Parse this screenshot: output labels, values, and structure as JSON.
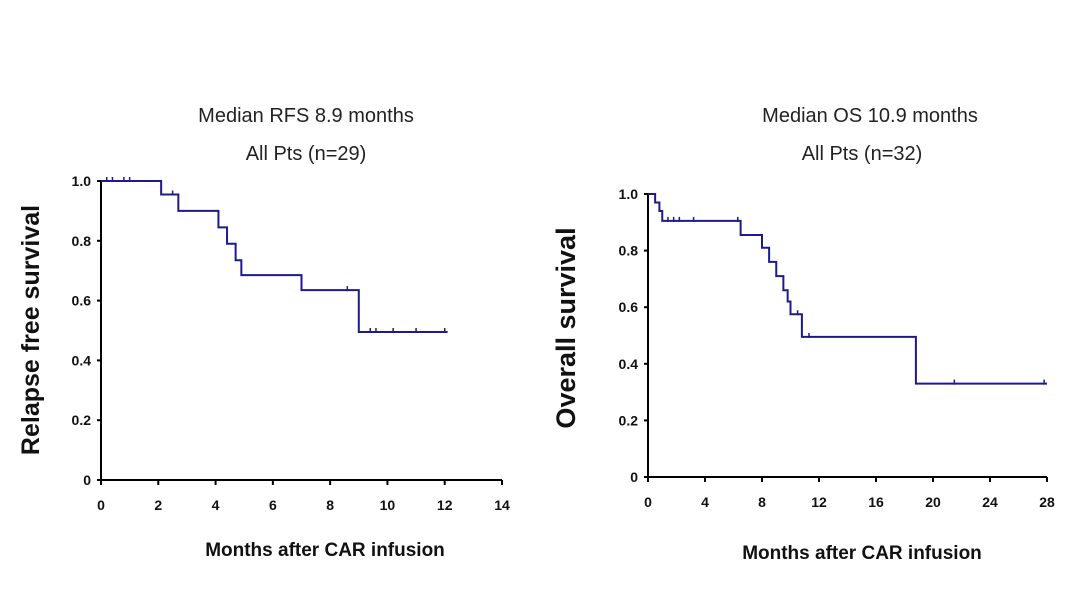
{
  "chart_data": [
    {
      "type": "line",
      "step": true,
      "title": "Median RFS 8.9 months",
      "subtitle": "All Pts (n=29)",
      "xlabel": "Months after CAR infusion",
      "ylabel": "Relapse free survival",
      "xlim": [
        0,
        14
      ],
      "ylim": [
        0,
        1.0
      ],
      "xticks": [
        "0",
        "2",
        "4",
        "6",
        "8",
        "10",
        "12",
        "14"
      ],
      "yticks": [
        "0",
        "0.2",
        "0.4",
        "0.6",
        "0.8",
        "1.0"
      ],
      "line_color": "#1c1a8c",
      "series": [
        {
          "name": "RFS",
          "x": [
            0,
            2.1,
            2.7,
            4.1,
            4.4,
            4.7,
            4.9,
            7.0,
            9.0,
            12.1
          ],
          "y": [
            1.0,
            0.955,
            0.9,
            0.845,
            0.79,
            0.735,
            0.685,
            0.635,
            0.495,
            0.495
          ],
          "censored_x": [
            0.2,
            0.4,
            0.8,
            1.0,
            2.5,
            8.6,
            9.4,
            9.6,
            10.2,
            11.0,
            12.0
          ]
        }
      ]
    },
    {
      "type": "line",
      "step": true,
      "title": "Median OS 10.9 months",
      "subtitle": "All Pts (n=32)",
      "xlabel": "Months after CAR infusion",
      "ylabel": "Overall survival",
      "xlim": [
        0,
        28
      ],
      "ylim": [
        0,
        1.0
      ],
      "xticks": [
        "0",
        "4",
        "8",
        "12",
        "16",
        "20",
        "24",
        "28"
      ],
      "yticks": [
        "0",
        "0.2",
        "0.4",
        "0.6",
        "0.8",
        "1.0"
      ],
      "line_color": "#1c1a8c",
      "series": [
        {
          "name": "OS",
          "x": [
            0,
            0.5,
            0.8,
            1.0,
            6.5,
            8.0,
            8.5,
            9.0,
            9.5,
            9.8,
            10.0,
            10.3,
            10.8,
            18.8,
            28.0
          ],
          "y": [
            1.0,
            0.97,
            0.94,
            0.905,
            0.855,
            0.81,
            0.76,
            0.71,
            0.66,
            0.62,
            0.575,
            0.575,
            0.495,
            0.33,
            0.33
          ],
          "censored_x": [
            1.4,
            1.8,
            2.2,
            3.2,
            6.3,
            10.5,
            11.3,
            21.5,
            27.8
          ]
        }
      ]
    }
  ]
}
